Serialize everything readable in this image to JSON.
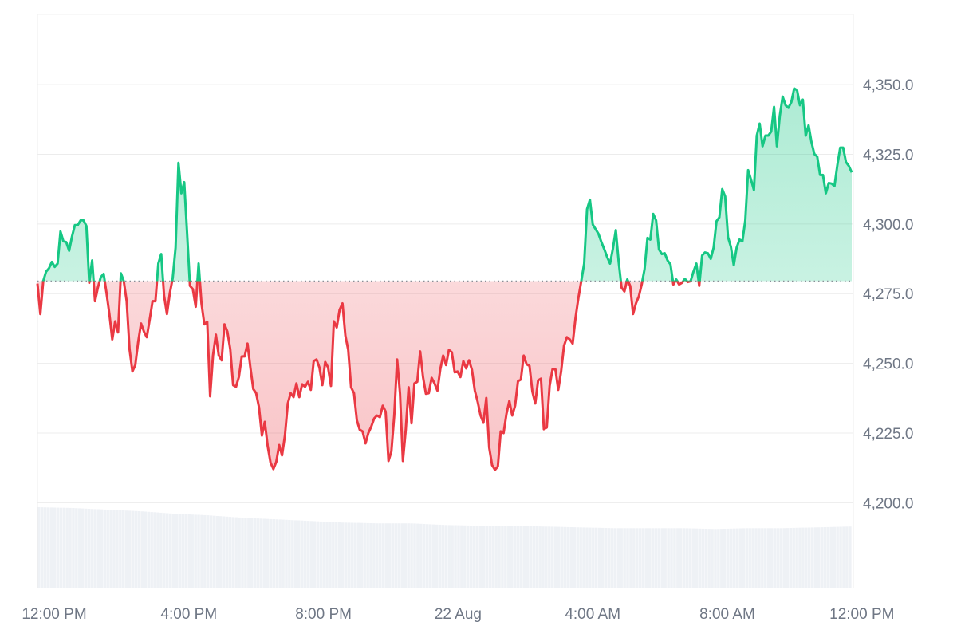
{
  "chart_data": {
    "type": "area",
    "start": "11:30 AM",
    "end": "11:50 AM (22 Aug)",
    "baseline": 4279.5,
    "ylim": [
      4169.5,
      4375.2
    ],
    "yticks": [
      "4,200.0",
      "4,225.0",
      "4,250.0",
      "4,275.0",
      "4,300.0",
      "4,325.0",
      "4,350.0"
    ],
    "ytick_values": [
      4200,
      4225,
      4250,
      4275,
      4300,
      4325,
      4350
    ],
    "xticks": [
      "12:00 PM",
      "4:00 PM",
      "8:00 PM",
      "22 Aug",
      "4:00 AM",
      "8:00 AM",
      "12:00 PM"
    ],
    "xtick_hours": [
      0,
      4,
      8,
      12,
      16,
      20,
      24
    ],
    "grid": true,
    "colors": {
      "up": "#16c784",
      "down": "#ea3943",
      "volume": "#eef1f5",
      "grid": "#ececec",
      "baseline": "#8a8f98"
    },
    "series": [
      {
        "values": [
          4278.6,
          4267.7,
          4279.5,
          4282.9,
          4284.1,
          4286.4,
          4284.6,
          4285.8,
          4297.3,
          4293.8,
          4293.5,
          4290.4,
          4295.5,
          4299.6,
          4299.6,
          4301.3,
          4301.3,
          4299.3,
          4278.9,
          4286.9,
          4272.3,
          4277.2,
          4280.9,
          4282.1,
          4275.2,
          4267.7,
          4258.6,
          4265.1,
          4261.1,
          4282.3,
          4279.5,
          4272.3,
          4255.1,
          4247.1,
          4249.4,
          4257.7,
          4264.3,
          4261.4,
          4259.4,
          4265.7,
          4272.3,
          4272.3,
          4285.8,
          4289.2,
          4274.3,
          4267.7,
          4275.2,
          4280.6,
          4291.5,
          4321.9,
          4311.0,
          4315.0,
          4296.7,
          4277.8,
          4276.6,
          4270.3,
          4285.8,
          4271.5,
          4264.0,
          4264.9,
          4238.2,
          4252.8,
          4260.3,
          4252.8,
          4251.1,
          4264.0,
          4261.4,
          4255.1,
          4242.2,
          4241.6,
          4245.1,
          4252.5,
          4252.5,
          4257.1,
          4248.5,
          4240.8,
          4239.3,
          4234.2,
          4224.1,
          4229.0,
          4220.4,
          4214.4,
          4212.1,
          4214.7,
          4220.7,
          4217.0,
          4224.1,
          4235.6,
          4239.3,
          4237.9,
          4242.8,
          4237.9,
          4242.5,
          4241.6,
          4243.4,
          4240.5,
          4250.8,
          4251.4,
          4248.5,
          4242.2,
          4250.5,
          4248.5,
          4241.9,
          4265.1,
          4262.9,
          4269.2,
          4271.5,
          4260.0,
          4254.8,
          4241.4,
          4239.3,
          4229.6,
          4226.2,
          4225.6,
          4221.3,
          4225.0,
          4227.3,
          4230.2,
          4231.3,
          4230.7,
          4234.8,
          4232.7,
          4215.0,
          4218.4,
          4231.3,
          4251.4,
          4239.1,
          4215.0,
          4226.2,
          4241.4,
          4228.5,
          4242.8,
          4243.4,
          4254.3,
          4245.1,
          4239.1,
          4239.3,
          4244.8,
          4242.8,
          4240.2,
          4247.9,
          4252.8,
          4249.4,
          4254.8,
          4254.0,
          4246.8,
          4247.1,
          4245.1,
          4250.8,
          4248.2,
          4251.1,
          4247.7,
          4240.2,
          4236.2,
          4231.3,
          4228.7,
          4237.6,
          4219.8,
          4213.5,
          4211.8,
          4213.0,
          4225.6,
          4225.0,
          4231.9,
          4236.5,
          4231.3,
          4234.8,
          4243.6,
          4244.2,
          4252.8,
          4249.7,
          4249.1,
          4239.9,
          4235.6,
          4243.9,
          4244.5,
          4226.4,
          4227.0,
          4241.9,
          4247.9,
          4247.9,
          4240.5,
          4247.1,
          4256.3,
          4259.4,
          4258.6,
          4257.1,
          4266.3,
          4273.5,
          4279.5,
          4285.8,
          4305.3,
          4308.7,
          4299.8,
          4298.1,
          4296.4,
          4293.5,
          4290.9,
          4288.1,
          4285.8,
          4291.2,
          4297.8,
          4286.4,
          4277.2,
          4275.8,
          4280.1,
          4277.8,
          4267.7,
          4271.5,
          4274.0,
          4278.3,
          4283.8,
          4295.0,
          4294.4,
          4303.6,
          4301.3,
          4290.9,
          4289.2,
          4289.5,
          4286.9,
          4285.5,
          4278.3,
          4280.1,
          4278.3,
          4278.9,
          4280.3,
          4279.2,
          4279.5,
          4282.9,
          4285.8,
          4277.8,
          4288.7,
          4289.8,
          4289.5,
          4287.5,
          4291.5,
          4301.0,
          4302.4,
          4312.5,
          4309.9,
          4295.3,
          4291.8,
          4285.2,
          4291.5,
          4294.4,
          4293.8,
          4301.3,
          4319.3,
          4315.9,
          4312.2,
          4331.7,
          4336.0,
          4327.9,
          4331.7,
          4331.7,
          4333.1,
          4342.0,
          4327.9,
          4338.8,
          4345.7,
          4342.6,
          4341.7,
          4343.7,
          4348.6,
          4348.0,
          4342.6,
          4344.6,
          4331.7,
          4335.4,
          4329.4,
          4325.1,
          4324.2,
          4317.6,
          4317.6,
          4311.0,
          4314.7,
          4314.5,
          4313.6,
          4321.1,
          4327.4,
          4327.4,
          4322.2,
          4320.8,
          4318.5
        ]
      }
    ],
    "volume_relative": [
      1.0,
      0.99,
      0.97,
      0.95,
      0.92,
      0.9,
      0.87,
      0.85,
      0.83,
      0.81,
      0.8,
      0.8,
      0.78,
      0.77,
      0.77,
      0.76,
      0.75,
      0.74,
      0.74,
      0.74,
      0.73,
      0.74,
      0.74,
      0.75,
      0.76
    ]
  }
}
